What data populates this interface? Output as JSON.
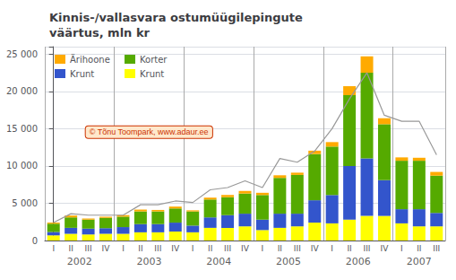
{
  "chart_data": {
    "type": "bar",
    "title": "Kinnis-/vallasvara ostumüügilepingute\nväärtus, mln kr",
    "categories": [
      "I",
      "II",
      "III",
      "IV",
      "I",
      "II",
      "III",
      "IV",
      "I",
      "II",
      "III",
      "IV",
      "I",
      "II",
      "III",
      "IV",
      "I",
      "II",
      "III",
      "IV",
      "I",
      "II",
      "III"
    ],
    "series": [
      {
        "name": "Krunt",
        "color": "#ffff00",
        "values": [
          700,
          900,
          800,
          900,
          900,
          1100,
          1100,
          1200,
          1100,
          1700,
          1700,
          1900,
          1400,
          1700,
          1900,
          2400,
          2300,
          2800,
          3300,
          3300,
          2300,
          1900,
          1900
        ]
      },
      {
        "name": "Krunt",
        "color": "#3355cc",
        "values": [
          450,
          800,
          800,
          750,
          900,
          1100,
          1100,
          1200,
          900,
          1400,
          1700,
          1700,
          1400,
          1900,
          1700,
          3000,
          3800,
          7200,
          7700,
          4800,
          1900,
          2300,
          1800
        ]
      },
      {
        "name": "Korter",
        "color": "#55aa00",
        "values": [
          1100,
          1400,
          1200,
          1400,
          1400,
          1700,
          1700,
          1900,
          1900,
          2400,
          2400,
          2700,
          3300,
          4800,
          5200,
          6200,
          6500,
          9500,
          11500,
          7500,
          6500,
          6500,
          5000
        ]
      },
      {
        "name": "Ärihoone",
        "color": "#ffaa00",
        "values": [
          150,
          250,
          150,
          150,
          200,
          250,
          200,
          250,
          150,
          250,
          300,
          350,
          300,
          350,
          300,
          450,
          600,
          1200,
          2200,
          800,
          450,
          400,
          500
        ]
      },
      {
        "type": "line",
        "color": "#999999",
        "values": [
          2400,
          3600,
          3400,
          3400,
          3400,
          4800,
          4800,
          5300,
          5100,
          6800,
          7100,
          8000,
          7100,
          11000,
          10500,
          12000,
          15000,
          19000,
          22500,
          16800,
          16000,
          16000,
          11500
        ]
      }
    ],
    "stacked": true,
    "ylim": [
      0,
      26000
    ],
    "yticks": [
      0,
      {
        "value": 5000,
        "label": "5 000"
      },
      {
        "value": 10000,
        "label": "10 000"
      },
      {
        "value": 15000,
        "label": "15 000"
      },
      {
        "value": 20000,
        "label": "20 000"
      },
      {
        "value": 25000,
        "label": "25 000"
      }
    ],
    "grid": true,
    "legend": "upper left",
    "annotations": [
      {
        "text": "2002",
        "x": 1.5
      },
      {
        "text": "2003",
        "x": 5.5
      },
      {
        "text": "2004",
        "x": 9.5
      },
      {
        "text": "2005",
        "x": 13.5
      },
      {
        "text": "2006",
        "x": 17.5
      },
      {
        "text": "2007",
        "x": 21.0
      },
      {
        "text": "© Tõnu Toompark, www.adaur.ee"
      }
    ]
  }
}
